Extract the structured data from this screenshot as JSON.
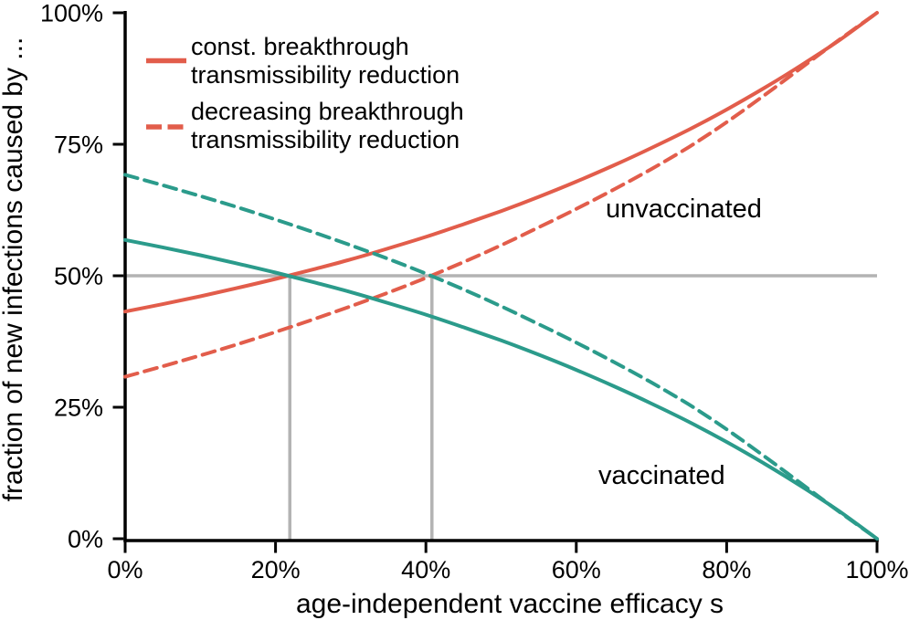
{
  "figure": {
    "background": "#ffffff",
    "text_color": "#000000"
  },
  "chart_data": {
    "type": "line",
    "title": "",
    "xlabel": "age-independent vaccine efficacy s",
    "ylabel": "fraction of new infections caused by ...",
    "xlim": [
      0,
      100
    ],
    "ylim": [
      0,
      100
    ],
    "grid": false,
    "x_ticks": [
      {
        "value": 0,
        "label": "0%"
      },
      {
        "value": 20,
        "label": "20%"
      },
      {
        "value": 40,
        "label": "40%"
      },
      {
        "value": 60,
        "label": "60%"
      },
      {
        "value": 80,
        "label": "80%"
      },
      {
        "value": 100,
        "label": "100%"
      }
    ],
    "y_ticks": [
      {
        "value": 0,
        "label": "0%"
      },
      {
        "value": 25,
        "label": "25%"
      },
      {
        "value": 50,
        "label": "50%"
      },
      {
        "value": 75,
        "label": "75%"
      },
      {
        "value": 100,
        "label": "100%"
      }
    ],
    "x": [
      0,
      5,
      10,
      15,
      20,
      25,
      30,
      35,
      40,
      45,
      50,
      55,
      60,
      65,
      70,
      75,
      80,
      85,
      90,
      95,
      100
    ],
    "series": [
      {
        "id": "unvaccinated-const",
        "name": "unvaccinated — const. breakthrough transmissibility reduction",
        "color": "#e25d4b",
        "style": "solid",
        "values": [
          43.2,
          44.6,
          46.1,
          47.7,
          49.4,
          51.2,
          53.1,
          55.2,
          57.4,
          59.8,
          62.3,
          65.0,
          67.9,
          71.0,
          74.3,
          77.8,
          81.6,
          85.7,
          90.1,
          94.8,
          100
        ]
      },
      {
        "id": "unvaccinated-decreasing",
        "name": "unvaccinated — decreasing breakthrough transmissibility reduction",
        "color": "#e25d4b",
        "style": "dashed",
        "values": [
          30.8,
          32.8,
          34.85,
          37.0,
          39.3,
          41.7,
          44.2,
          46.8,
          49.6,
          52.6,
          55.8,
          59.2,
          62.7,
          66.4,
          70.3,
          74.5,
          79.2,
          84.3,
          89.6,
          94.9,
          100
        ]
      },
      {
        "id": "vaccinated-const",
        "name": "vaccinated — const. breakthrough transmissibility reduction",
        "color": "#2b9b8b",
        "style": "solid",
        "values": [
          56.8,
          55.4,
          53.9,
          52.3,
          50.6,
          48.8,
          46.9,
          44.8,
          42.6,
          40.2,
          37.7,
          35.0,
          32.1,
          29.0,
          25.7,
          22.2,
          18.4,
          14.3,
          9.9,
          5.2,
          0
        ]
      },
      {
        "id": "vaccinated-decreasing",
        "name": "vaccinated — decreasing breakthrough transmissibility reduction",
        "color": "#2b9b8b",
        "style": "dashed",
        "values": [
          69.2,
          67.2,
          65.15,
          63.0,
          60.7,
          58.3,
          55.8,
          53.2,
          50.4,
          47.4,
          44.2,
          40.8,
          37.3,
          33.6,
          29.7,
          25.5,
          20.8,
          15.7,
          10.4,
          5.1,
          0
        ]
      }
    ],
    "reference_lines": {
      "color": "#b3b3b3",
      "horizontal_y": 50,
      "vertical_x": [
        21.9,
        40.8
      ]
    },
    "annotations": [
      {
        "text": "unvaccinated",
        "color": "#e25d4b"
      },
      {
        "text": "vaccinated",
        "color": "#2b9b8b"
      }
    ],
    "legend": {
      "position": "upper left",
      "entries": [
        {
          "line1": "const. breakthrough",
          "line2": "transmissibility reduction",
          "style": "solid",
          "color": "#e25d4b"
        },
        {
          "line1": "decreasing breakthrough",
          "line2": "transmissibility reduction",
          "style": "dashed",
          "color": "#e25d4b"
        }
      ]
    }
  }
}
